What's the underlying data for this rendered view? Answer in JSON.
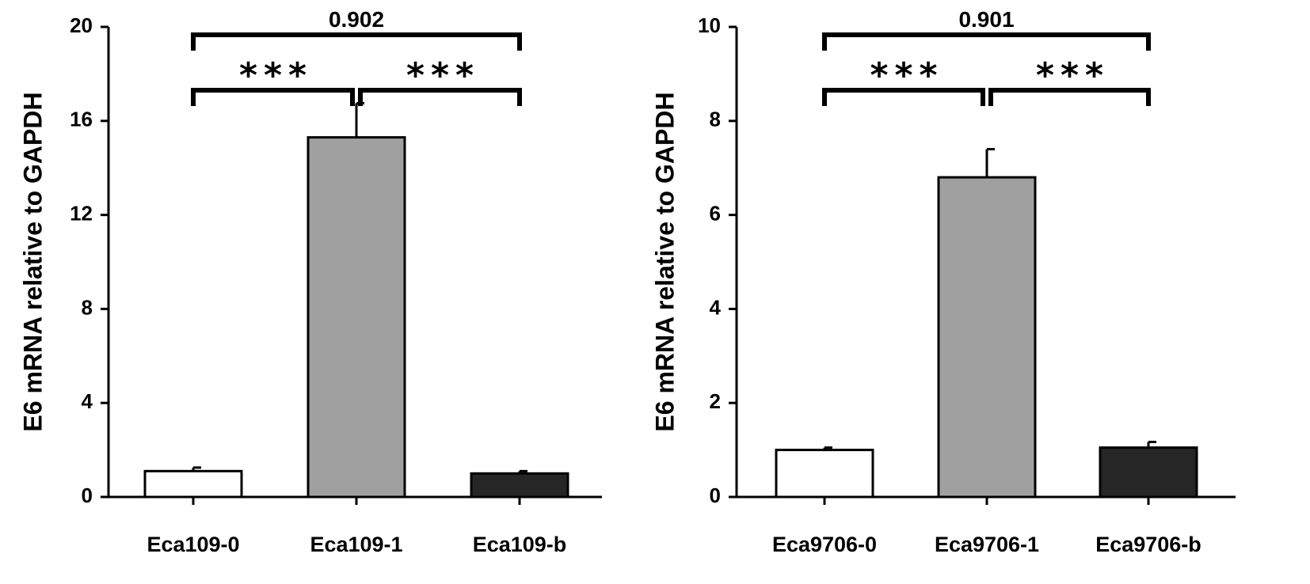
{
  "chart_data": [
    {
      "type": "bar",
      "ylabel": "E6 mRNA relative to GAPDH",
      "ylim": [
        0,
        20
      ],
      "yticks": [
        0,
        4,
        8,
        12,
        16,
        20
      ],
      "categories": [
        "Eca109-0",
        "Eca109-1",
        "Eca109-b"
      ],
      "values": [
        1.1,
        15.3,
        1.0
      ],
      "errors": [
        0.15,
        1.45,
        0.1
      ],
      "colors": [
        "#ffffff",
        "#a0a0a0",
        "#262626"
      ],
      "significance": [
        {
          "from": 0,
          "to": 2,
          "label": "0.902",
          "level": 2
        },
        {
          "from": 0,
          "to": 1,
          "label": "***",
          "level": 1
        },
        {
          "from": 1,
          "to": 2,
          "label": "***",
          "level": 1
        }
      ]
    },
    {
      "type": "bar",
      "ylabel": "E6 mRNA relative to GAPDH",
      "ylim": [
        0,
        10
      ],
      "yticks": [
        0,
        2,
        4,
        6,
        8,
        10
      ],
      "categories": [
        "Eca9706-0",
        "Eca9706-1",
        "Eca9706-b"
      ],
      "values": [
        1.0,
        6.8,
        1.05
      ],
      "errors": [
        0.05,
        0.6,
        0.12
      ],
      "colors": [
        "#ffffff",
        "#a0a0a0",
        "#262626"
      ],
      "significance": [
        {
          "from": 0,
          "to": 2,
          "label": "0.901",
          "level": 2
        },
        {
          "from": 0,
          "to": 1,
          "label": "***",
          "level": 1
        },
        {
          "from": 1,
          "to": 2,
          "label": "***",
          "level": 1
        }
      ]
    }
  ]
}
